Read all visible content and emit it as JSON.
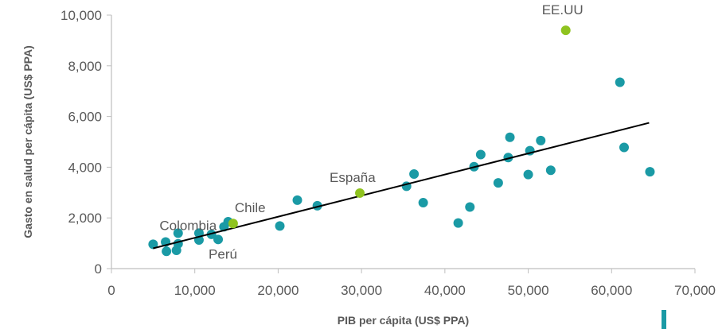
{
  "colors": {
    "teal": "#1a9aa5",
    "highlight": "#8fc31f",
    "trend": "#000000",
    "axis": "#bfbfbf",
    "text": "#595959"
  },
  "chart_data": {
    "type": "scatter",
    "title": "",
    "xlabel": "PIB per cápita (US$ PPA)",
    "ylabel": "Gasto en salud per cápita (US$ PPA)",
    "xlim": [
      0,
      70000
    ],
    "ylim": [
      0,
      10000
    ],
    "xticks": [
      0,
      10000,
      20000,
      30000,
      40000,
      50000,
      60000,
      70000
    ],
    "yticks": [
      0,
      2000,
      4000,
      6000,
      8000,
      10000
    ],
    "xtick_labels": [
      "0",
      "10,000",
      "20,000",
      "30,000",
      "40,000",
      "50,000",
      "60,000",
      "70,000"
    ],
    "ytick_labels": [
      "0",
      "2,000",
      "4,000",
      "6,000",
      "8,000",
      "10,000"
    ],
    "grid": false,
    "trendline": {
      "x": [
        5000,
        64500
      ],
      "y": [
        800,
        5750
      ]
    },
    "points": [
      {
        "x": 5000,
        "y": 960
      },
      {
        "x": 6500,
        "y": 1050
      },
      {
        "x": 6600,
        "y": 680
      },
      {
        "x": 7800,
        "y": 720
      },
      {
        "x": 8000,
        "y": 980
      },
      {
        "x": 8000,
        "y": 1400
      },
      {
        "x": 10500,
        "y": 1130
      },
      {
        "x": 10500,
        "y": 1400
      },
      {
        "x": 12000,
        "y": 1350
      },
      {
        "x": 12800,
        "y": 1150
      },
      {
        "x": 13500,
        "y": 1650
      },
      {
        "x": 14000,
        "y": 1850
      },
      {
        "x": 20200,
        "y": 1680
      },
      {
        "x": 22300,
        "y": 2700
      },
      {
        "x": 24700,
        "y": 2480
      },
      {
        "x": 35400,
        "y": 3250
      },
      {
        "x": 36300,
        "y": 3730
      },
      {
        "x": 37400,
        "y": 2600
      },
      {
        "x": 41600,
        "y": 1800
      },
      {
        "x": 43000,
        "y": 2430
      },
      {
        "x": 43500,
        "y": 4020
      },
      {
        "x": 44300,
        "y": 4500
      },
      {
        "x": 46400,
        "y": 3380
      },
      {
        "x": 47600,
        "y": 4380
      },
      {
        "x": 47800,
        "y": 5180
      },
      {
        "x": 50000,
        "y": 3710
      },
      {
        "x": 50200,
        "y": 4650
      },
      {
        "x": 51500,
        "y": 5050
      },
      {
        "x": 52700,
        "y": 3880
      },
      {
        "x": 61000,
        "y": 7350
      },
      {
        "x": 61500,
        "y": 4780
      },
      {
        "x": 64600,
        "y": 3820
      }
    ],
    "highlighted_points": [
      {
        "name": "EE.UU",
        "x": 54500,
        "y": 9400
      },
      {
        "name": "España",
        "x": 29800,
        "y": 2980
      },
      {
        "name": "Chile",
        "x": 14600,
        "y": 1780
      }
    ],
    "annotations": [
      {
        "text": "EE.UU",
        "x": 54500,
        "y": 9400
      },
      {
        "text": "España",
        "x": 29800,
        "y": 2980
      },
      {
        "text": "Chile",
        "x": 14600,
        "y": 1780
      },
      {
        "text": "Colombia",
        "x": 5000,
        "y": 960
      },
      {
        "text": "Perú",
        "x": 12800,
        "y": 1150
      }
    ]
  }
}
